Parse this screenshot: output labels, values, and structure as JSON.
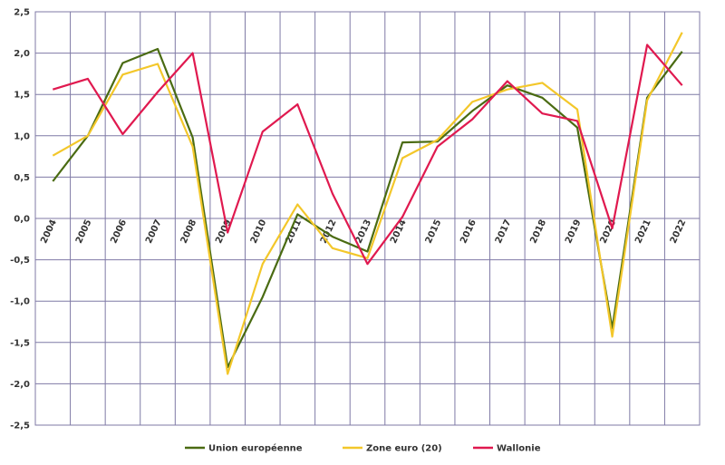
{
  "chart_data": {
    "type": "line",
    "title": "",
    "xlabel": "",
    "ylabel": "",
    "ylim": [
      -2.5,
      2.5
    ],
    "ytick_step": 0.5,
    "x": [
      "2004",
      "2005",
      "2006",
      "2007",
      "2008",
      "2009",
      "2010",
      "2011",
      "2012",
      "2013",
      "2014",
      "2015",
      "2016",
      "2017",
      "2018",
      "2019",
      "2020",
      "2021",
      "2022"
    ],
    "grid": true,
    "legend_position": "bottom",
    "series": [
      {
        "name": "Union européenne",
        "color": "#4a6b12",
        "values": [
          0.45,
          1.0,
          1.88,
          2.05,
          0.98,
          -1.8,
          -0.95,
          0.05,
          -0.22,
          -0.4,
          0.92,
          0.93,
          1.3,
          1.61,
          1.46,
          1.1,
          -1.33,
          1.46,
          2.02
        ]
      },
      {
        "name": "Zone euro (20)",
        "color": "#f3c72a",
        "values": [
          0.76,
          1.0,
          1.74,
          1.87,
          0.87,
          -1.88,
          -0.55,
          0.17,
          -0.36,
          -0.48,
          0.73,
          0.95,
          1.41,
          1.56,
          1.64,
          1.32,
          -1.43,
          1.43,
          2.25
        ]
      },
      {
        "name": "Wallonie",
        "color": "#e0194f",
        "values": [
          1.56,
          1.69,
          1.02,
          1.53,
          2.0,
          -0.17,
          1.05,
          1.38,
          0.3,
          -0.55,
          0.02,
          0.87,
          1.2,
          1.66,
          1.27,
          1.18,
          -0.12,
          2.1,
          1.61
        ]
      }
    ]
  }
}
